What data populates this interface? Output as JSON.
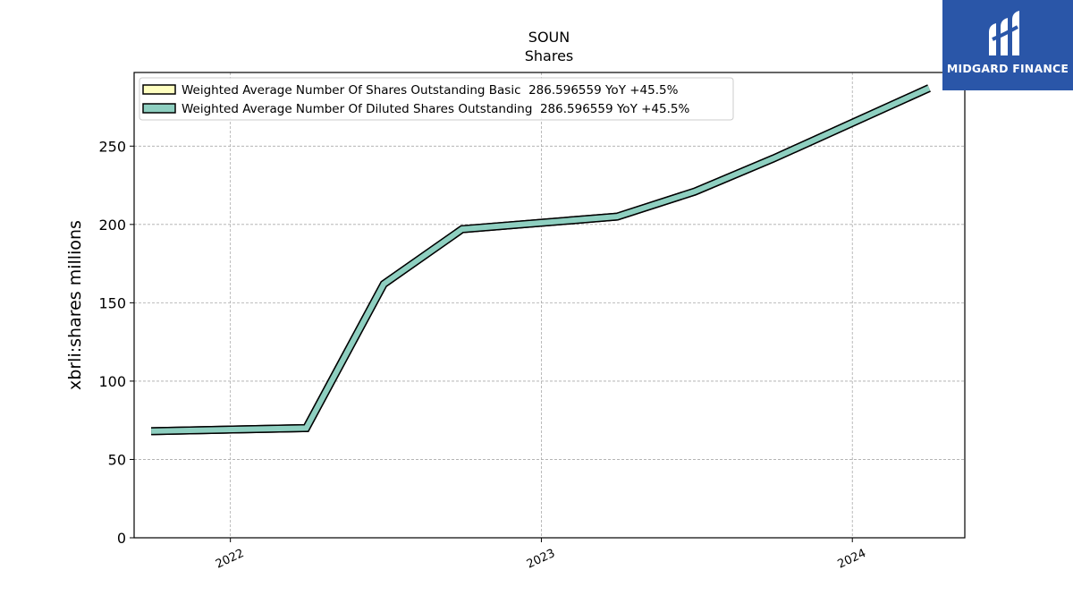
{
  "brand": {
    "name": "MIDGARD FINANCE",
    "bg_color": "#2a56a8"
  },
  "chart_data": {
    "type": "line",
    "title": "SOUN",
    "subtitle": "Shares",
    "xlabel": "",
    "ylabel": "xbrli:shares millions",
    "x_ticks": [
      "2022",
      "2023",
      "2024"
    ],
    "y_ticks": [
      "0",
      "50",
      "100",
      "150",
      "200",
      "250"
    ],
    "ylim": [
      0,
      297
    ],
    "xlim": [
      "2021-09-10",
      "2024-05-12"
    ],
    "grid": true,
    "legend_position": "top-left",
    "x": [
      "2021-09-30",
      "2022-03-31",
      "2022-06-30",
      "2022-09-30",
      "2023-03-31",
      "2023-06-30",
      "2023-09-30",
      "2024-03-31"
    ],
    "series": [
      {
        "name": "Weighted Average Number Of Shares Outstanding Basic  286.596559 YoY +45.5%",
        "color": "#ffffc0",
        "values": [
          68,
          70,
          162,
          197,
          205,
          221,
          242,
          287
        ]
      },
      {
        "name": "Weighted Average Number Of Diluted Shares Outstanding  286.596559 YoY +45.5%",
        "color": "#8ecfc0",
        "values": [
          68,
          70,
          162,
          197,
          205,
          221,
          242,
          287
        ]
      }
    ]
  }
}
